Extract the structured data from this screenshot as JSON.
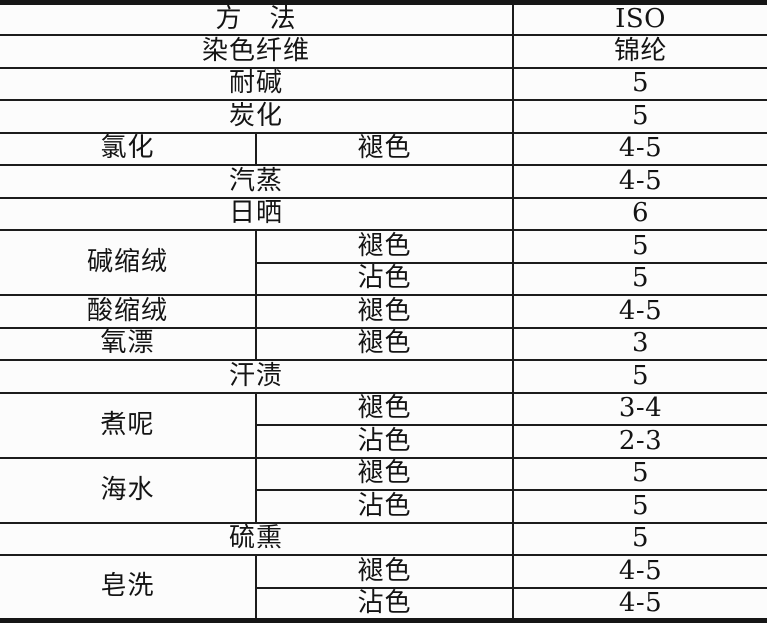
{
  "colors": {
    "rule_line": "#1c1c1c",
    "outer_border": "#161616",
    "text": "#141414",
    "background": "#fcfcfc"
  },
  "table": {
    "description_header": {
      "method_label": "方　法",
      "standard_label": "ISO",
      "fiber_label": "染色纤维",
      "fiber_value": "锦纶"
    },
    "rows": [
      {
        "cells": [
          {
            "t": "方　法",
            "cs": 2,
            "cls": "span2",
            "name": "header-method-cell"
          },
          {
            "t": "ISO",
            "cls": "c3",
            "name": "header-iso-cell"
          }
        ]
      },
      {
        "cells": [
          {
            "t": "染色纤维",
            "cs": 2,
            "cls": "span2",
            "name": "dyed-fiber-label-cell"
          },
          {
            "t": "锦纶",
            "cls": "c3",
            "name": "fiber-value-cell"
          }
        ]
      },
      {
        "cells": [
          {
            "t": "耐碱",
            "cs": 2,
            "cls": "span2",
            "name": "method-cell"
          },
          {
            "t": "5",
            "cls": "c3",
            "name": "rating-cell"
          }
        ]
      },
      {
        "cells": [
          {
            "t": "炭化",
            "cs": 2,
            "cls": "span2",
            "name": "method-cell"
          },
          {
            "t": "5",
            "cls": "c3",
            "name": "rating-cell"
          }
        ]
      },
      {
        "cells": [
          {
            "t": "氯化",
            "cls": "c1",
            "name": "method-cell"
          },
          {
            "t": "褪色",
            "cls": "c2",
            "name": "effect-cell"
          },
          {
            "t": "4-5",
            "cls": "c3",
            "name": "rating-cell"
          }
        ]
      },
      {
        "cells": [
          {
            "t": "汽蒸",
            "cs": 2,
            "cls": "span2",
            "name": "method-cell"
          },
          {
            "t": "4-5",
            "cls": "c3",
            "name": "rating-cell"
          }
        ]
      },
      {
        "cells": [
          {
            "t": "日晒",
            "cs": 2,
            "cls": "span2",
            "name": "method-cell"
          },
          {
            "t": "6",
            "cls": "c3",
            "name": "rating-cell"
          }
        ]
      },
      {
        "cells": [
          {
            "t": "碱缩绒",
            "rs": 2,
            "cls": "c1",
            "name": "method-cell"
          },
          {
            "t": "褪色",
            "cls": "c2",
            "name": "effect-cell"
          },
          {
            "t": "5",
            "cls": "c3",
            "name": "rating-cell"
          }
        ]
      },
      {
        "cells": [
          {
            "t": "沾色",
            "cls": "c2",
            "name": "effect-cell"
          },
          {
            "t": "5",
            "cls": "c3",
            "name": "rating-cell"
          }
        ]
      },
      {
        "cells": [
          {
            "t": "酸缩绒",
            "cls": "c1",
            "name": "method-cell"
          },
          {
            "t": "褪色",
            "cls": "c2",
            "name": "effect-cell"
          },
          {
            "t": "4-5",
            "cls": "c3",
            "name": "rating-cell"
          }
        ]
      },
      {
        "cells": [
          {
            "t": "氧漂",
            "cls": "c1",
            "name": "method-cell"
          },
          {
            "t": "褪色",
            "cls": "c2",
            "name": "effect-cell"
          },
          {
            "t": "3",
            "cls": "c3",
            "name": "rating-cell"
          }
        ]
      },
      {
        "cells": [
          {
            "t": "汗渍",
            "cs": 2,
            "cls": "span2",
            "name": "method-cell"
          },
          {
            "t": "5",
            "cls": "c3",
            "name": "rating-cell"
          }
        ]
      },
      {
        "cells": [
          {
            "t": "煮呢",
            "rs": 2,
            "cls": "c1",
            "name": "method-cell"
          },
          {
            "t": "褪色",
            "cls": "c2",
            "name": "effect-cell"
          },
          {
            "t": "3-4",
            "cls": "c3",
            "name": "rating-cell"
          }
        ]
      },
      {
        "cells": [
          {
            "t": "沾色",
            "cls": "c2",
            "name": "effect-cell"
          },
          {
            "t": "2-3",
            "cls": "c3",
            "name": "rating-cell"
          }
        ]
      },
      {
        "cells": [
          {
            "t": "海水",
            "rs": 2,
            "cls": "c1",
            "name": "method-cell"
          },
          {
            "t": "褪色",
            "cls": "c2",
            "name": "effect-cell"
          },
          {
            "t": "5",
            "cls": "c3",
            "name": "rating-cell"
          }
        ]
      },
      {
        "cells": [
          {
            "t": "沾色",
            "cls": "c2",
            "name": "effect-cell"
          },
          {
            "t": "5",
            "cls": "c3",
            "name": "rating-cell"
          }
        ]
      },
      {
        "cells": [
          {
            "t": "硫熏",
            "cs": 2,
            "cls": "span2",
            "name": "method-cell"
          },
          {
            "t": "5",
            "cls": "c3",
            "name": "rating-cell"
          }
        ]
      },
      {
        "cells": [
          {
            "t": "皂洗",
            "rs": 2,
            "cls": "c1",
            "name": "method-cell"
          },
          {
            "t": "褪色",
            "cls": "c2",
            "name": "effect-cell"
          },
          {
            "t": "4-5",
            "cls": "c3",
            "name": "rating-cell"
          }
        ]
      },
      {
        "cells": [
          {
            "t": "沾色",
            "cls": "c2",
            "name": "effect-cell"
          },
          {
            "t": "4-5",
            "cls": "c3",
            "name": "rating-cell"
          }
        ]
      }
    ]
  }
}
